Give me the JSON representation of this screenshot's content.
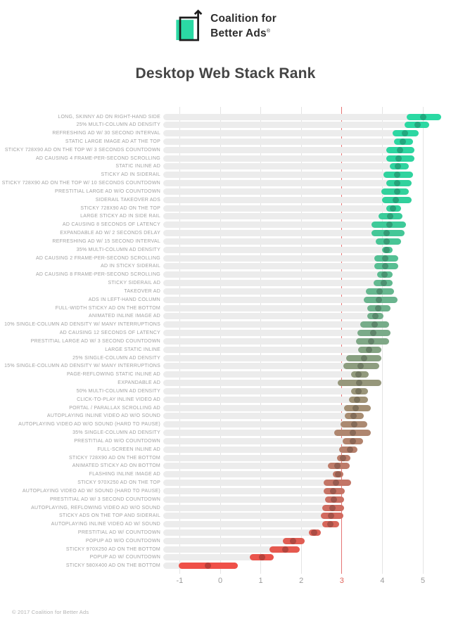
{
  "header": {
    "logo_line1": "Coalition for",
    "logo_line2": "Better Ads",
    "reg_mark": "®",
    "logo_green": "#2bd9a4",
    "logo_black": "#1d1d1d"
  },
  "title": "Desktop Web Stack Rank",
  "footer": "© 2017 Coalition for Better Ads",
  "chart_data": {
    "type": "range-dot-bar",
    "title": "Desktop Web Stack Rank",
    "orientation": "horizontal",
    "xlim": [
      -1.4,
      5.5
    ],
    "ticks": [
      -1,
      0,
      1,
      2,
      3,
      4,
      5
    ],
    "threshold_tick": 3,
    "grid": "vertical-light-gray, threshold line red",
    "colors": {
      "track": "#ececec",
      "gridline": "#e4e4e4",
      "threshold_line": "#e57373",
      "threshold_label": "#e0645c",
      "palette_stops": [
        {
          "t": 0.0,
          "color": "#2ad9a3"
        },
        {
          "t": 0.2,
          "color": "#33cf9b"
        },
        {
          "t": 0.35,
          "color": "#5dbc92"
        },
        {
          "t": 0.48,
          "color": "#7aaa88"
        },
        {
          "t": 0.58,
          "color": "#93997c"
        },
        {
          "t": 0.67,
          "color": "#a88c72"
        },
        {
          "t": 0.76,
          "color": "#ba7d6a"
        },
        {
          "t": 0.86,
          "color": "#cb6f63"
        },
        {
          "t": 0.93,
          "color": "#dc6156"
        },
        {
          "t": 1.0,
          "color": "#ef5048"
        }
      ],
      "dot_darken_factor": 0.78
    },
    "rows": [
      {
        "label": "LONG, SKINNY AD ON RIGHT-HAND SIDE",
        "low": 4.6,
        "high": 5.45,
        "dot": 5.0
      },
      {
        "label": "25% MULTI-COLUMN AD DENSITY",
        "low": 4.55,
        "high": 5.15,
        "dot": 4.87
      },
      {
        "label": "REFRESHING AD W/ 30 SECOND INTERVAL",
        "low": 4.25,
        "high": 4.9,
        "dot": 4.56
      },
      {
        "label": "STATIC LARGE IMAGE AD AT THE TOP",
        "low": 4.29,
        "high": 4.75,
        "dot": 4.51
      },
      {
        "label": "STICKY 728X90 AD ON THE TOP W/ 3 SECONDS COUNTDOWN",
        "low": 4.1,
        "high": 4.8,
        "dot": 4.43
      },
      {
        "label": "AD CAUSING 4 FRAME-PER-SECOND SCROLLING",
        "low": 4.1,
        "high": 4.79,
        "dot": 4.4
      },
      {
        "label": "STATIC INLINE AD",
        "low": 4.19,
        "high": 4.65,
        "dot": 4.39
      },
      {
        "label": "STICKY AD IN SIDERAIL",
        "low": 4.02,
        "high": 4.76,
        "dot": 4.36
      },
      {
        "label": "STICKY 728X90 AD ON THE TOP W/ 10 SECONDS COUNTDOWN",
        "low": 4.09,
        "high": 4.72,
        "dot": 4.37
      },
      {
        "label": "PRESTITIAL LARGE AD W/O COUNTDOWN",
        "low": 3.97,
        "high": 4.66,
        "dot": 4.37
      },
      {
        "label": "SIDERAIL TAKEOVER ADS",
        "low": 4.0,
        "high": 4.72,
        "dot": 4.34
      },
      {
        "label": "STICKY 728X90 AD ON THE TOP",
        "low": 4.09,
        "high": 4.46,
        "dot": 4.26
      },
      {
        "label": "LARGE STICKY AD IN SIDE RAIL",
        "low": 3.91,
        "high": 4.49,
        "dot": 4.2
      },
      {
        "label": "AD CAUSING 8 SECONDS OF LATENCY",
        "low": 3.73,
        "high": 4.58,
        "dot": 4.17
      },
      {
        "label": "EXPANDABLE AD W/ 2 SECONDS DELAY",
        "low": 3.74,
        "high": 4.55,
        "dot": 4.11
      },
      {
        "label": "REFRESHING AD W/ 15 SECOND INTERVAL",
        "low": 3.84,
        "high": 4.46,
        "dot": 4.11
      },
      {
        "label": "35% MULTI-COLUMN AD DENSITY",
        "low": 4.0,
        "high": 4.26,
        "dot": 4.1
      },
      {
        "label": "AD CAUSING 2 FRAME-PER-SECOND SCROLLING",
        "low": 3.81,
        "high": 4.4,
        "dot": 4.07
      },
      {
        "label": "AD IN STICKY SIDERAIL",
        "low": 3.81,
        "high": 4.39,
        "dot": 4.07
      },
      {
        "label": "AD CAUSING 8 FRAME-PER-SECOND SCROLLING",
        "low": 3.88,
        "high": 4.26,
        "dot": 4.06
      },
      {
        "label": "STICKY SIDERAIL AD",
        "low": 3.78,
        "high": 4.26,
        "dot": 4.03
      },
      {
        "label": "TAKEOVER AD",
        "low": 3.59,
        "high": 4.29,
        "dot": 3.94
      },
      {
        "label": "ADS IN LEFT-HAND COLUMN",
        "low": 3.55,
        "high": 4.38,
        "dot": 3.91
      },
      {
        "label": "FULL-WIDTH STICKY AD ON THE BOTTOM",
        "low": 3.62,
        "high": 4.2,
        "dot": 3.89
      },
      {
        "label": "ANIMATED INLINE IMAGE AD",
        "low": 3.63,
        "high": 4.02,
        "dot": 3.83
      },
      {
        "label": "10% SINGLE-COLUMN AD DENSITY W/ MANY INTERRUPTIONS",
        "low": 3.46,
        "high": 4.16,
        "dot": 3.81
      },
      {
        "label": "AD CAUSING 12 SECONDS OF LATENCY",
        "low": 3.39,
        "high": 4.2,
        "dot": 3.77
      },
      {
        "label": "PRESTITIAL LARGE AD W/ 3 SECOND COUNTDOWN",
        "low": 3.35,
        "high": 4.17,
        "dot": 3.73
      },
      {
        "label": "LARGE STATIC INLINE",
        "low": 3.41,
        "high": 3.97,
        "dot": 3.67
      },
      {
        "label": "25% SINGLE-COLUMN AD DENSITY",
        "low": 3.11,
        "high": 3.98,
        "dot": 3.55
      },
      {
        "label": "15% SINGLE-COLUMN AD DENSITY W/ MANY INTERRUPTIONS",
        "low": 3.04,
        "high": 3.92,
        "dot": 3.47
      },
      {
        "label": "PAGE-REFLOWING STATIC INLINE AD",
        "low": 3.23,
        "high": 3.66,
        "dot": 3.42
      },
      {
        "label": "EXPANDABLE AD",
        "low": 2.9,
        "high": 3.98,
        "dot": 3.43
      },
      {
        "label": "50% MULTI-COLUMN AD DENSITY",
        "low": 3.23,
        "high": 3.65,
        "dot": 3.41
      },
      {
        "label": "CLICK-TO-PLAY INLINE VIDEO AD",
        "low": 3.17,
        "high": 3.64,
        "dot": 3.37
      },
      {
        "label": "PORTAL / PARALLAX SCROLLING AD",
        "low": 3.06,
        "high": 3.71,
        "dot": 3.35
      },
      {
        "label": "AUTOPLAYING INLINE VIDEO AD W/O SOUND",
        "low": 3.07,
        "high": 3.54,
        "dot": 3.29
      },
      {
        "label": "AUTOPLAYING VIDEO AD W/O SOUND (HARD TO PAUSE)",
        "low": 2.97,
        "high": 3.63,
        "dot": 3.3
      },
      {
        "label": "35% SINGLE-COLUMN AD DENSITY",
        "low": 2.82,
        "high": 3.72,
        "dot": 3.28
      },
      {
        "label": "PRESTITIAL AD W/O COUNTDOWN",
        "low": 3.02,
        "high": 3.52,
        "dot": 3.27
      },
      {
        "label": "FULL-SCREEN INLINE AD",
        "low": 2.94,
        "high": 3.39,
        "dot": 3.21
      },
      {
        "label": "STICKY 728X90 AD ON THE BOTTOM",
        "low": 2.89,
        "high": 3.22,
        "dot": 3.03
      },
      {
        "label": "ANIMATED STICKY AD ON BOTTOM",
        "low": 2.65,
        "high": 3.19,
        "dot": 2.89
      },
      {
        "label": "FLASHING INLINE IMAGE AD",
        "low": 2.77,
        "high": 3.04,
        "dot": 2.9
      },
      {
        "label": "STICKY 970X250 AD ON THE TOP",
        "low": 2.56,
        "high": 3.23,
        "dot": 2.85
      },
      {
        "label": "AUTOPLAYING VIDEO AD W/ SOUND (HARD TO PAUSE)",
        "low": 2.55,
        "high": 3.08,
        "dot": 2.78
      },
      {
        "label": "PRESTITIAL AD W/ 3 SECOND COUNTDOWN",
        "low": 2.59,
        "high": 3.06,
        "dot": 2.81
      },
      {
        "label": "AUTOPLAYING, REFLOWING VIDEO AD W/O SOUND",
        "low": 2.52,
        "high": 3.06,
        "dot": 2.77
      },
      {
        "label": "STICKY ADS ON THE TOP AND SIDERAIL",
        "low": 2.49,
        "high": 3.04,
        "dot": 2.74
      },
      {
        "label": "AUTOPLAYING INLINE VIDEO AD W/ SOUND",
        "low": 2.52,
        "high": 2.93,
        "dot": 2.71
      },
      {
        "label": "PRESTITIAL AD W/ COUNTDOWN",
        "low": 2.19,
        "high": 2.48,
        "dot": 2.32
      },
      {
        "label": "POPUP AD W/O COUNTDOWN",
        "low": 1.54,
        "high": 2.08,
        "dot": 1.8
      },
      {
        "label": "STICKY 970X250 AD ON THE BOTTOM",
        "low": 1.22,
        "high": 1.97,
        "dot": 1.6
      },
      {
        "label": "POPUP AD W/ COUNTDOWN",
        "low": 0.73,
        "high": 1.32,
        "dot": 1.04
      },
      {
        "label": "STICKY 580X400 AD ON THE BOTTOM",
        "low": -1.02,
        "high": 0.44,
        "dot": -0.3
      }
    ]
  }
}
